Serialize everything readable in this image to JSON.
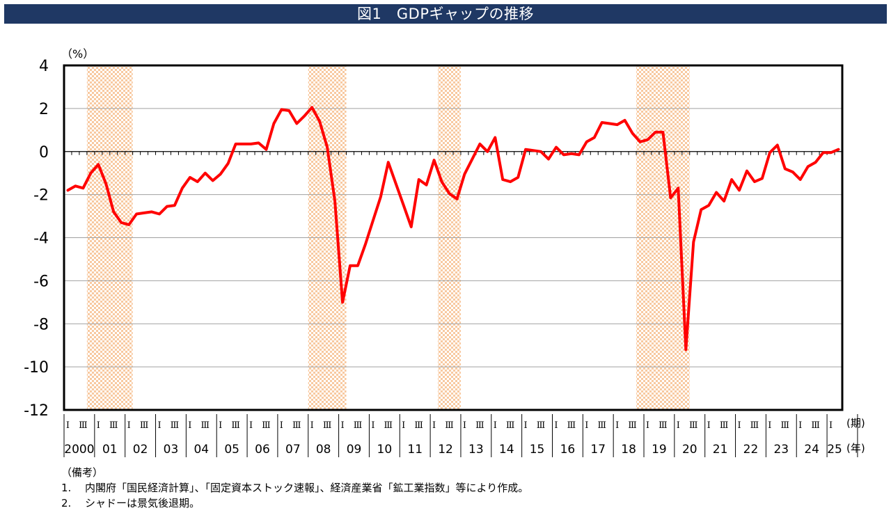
{
  "title": "図1　GDPギャップの推移",
  "notes": {
    "heading": "（備考）",
    "items": [
      {
        "num": "1.",
        "text": "内閣府「国民経済計算」、「固定資本ストック速報」、経済産業省「鉱工業指数」等により作成。"
      },
      {
        "num": "2.",
        "text": "シャドーは景気後退期。"
      }
    ]
  },
  "colors": {
    "title_bg": "#1f3864",
    "line": "#ff0000",
    "shade": "#f8c9a0"
  },
  "chart_data": {
    "type": "line",
    "ylabel": "（%）",
    "ylim": [
      -12,
      4
    ],
    "yticks": [
      4,
      2,
      0,
      -2,
      -4,
      -6,
      -8,
      -10,
      -12
    ],
    "grid": true,
    "legend": "none",
    "x_period_label": "(期)",
    "x_year_label": "(年)",
    "year_labels": [
      "2000",
      "01",
      "02",
      "03",
      "04",
      "05",
      "06",
      "07",
      "08",
      "09",
      "10",
      "11",
      "12",
      "13",
      "14",
      "15",
      "16",
      "17",
      "18",
      "19",
      "20",
      "21",
      "22",
      "23",
      "24",
      "25"
    ],
    "quarter_marks": [
      "Ⅰ",
      "Ⅲ"
    ],
    "start_quarter": "2000Q1",
    "end_quarter": "2025Q2",
    "recessions": [
      {
        "start": "2000Q4",
        "end": "2002Q1"
      },
      {
        "start": "2008Q1",
        "end": "2009Q1"
      },
      {
        "start": "2012Q2",
        "end": "2012Q4"
      },
      {
        "start": "2018Q4",
        "end": "2020Q2"
      }
    ],
    "series": [
      {
        "values": [
          -1.8,
          -1.6,
          -1.7,
          -1.0,
          -0.6,
          -1.5,
          -2.8,
          -3.3,
          -3.4,
          -2.9,
          -2.85,
          -2.8,
          -2.9,
          -2.55,
          -2.5,
          -1.7,
          -1.2,
          -1.4,
          -1.0,
          -1.35,
          -1.05,
          -0.55,
          0.35,
          0.35,
          0.35,
          0.4,
          0.1,
          1.3,
          1.95,
          1.9,
          1.3,
          1.65,
          2.05,
          1.4,
          0.2,
          -2.3,
          -7.0,
          -5.3,
          -5.3,
          -4.3,
          -3.2,
          -2.1,
          -0.5,
          -1.5,
          -2.5,
          -3.5,
          -1.3,
          -1.55,
          -0.4,
          -1.4,
          -1.95,
          -2.2,
          -1.05,
          -0.35,
          0.35,
          0.0,
          0.65,
          -1.3,
          -1.4,
          -1.2,
          0.1,
          0.05,
          0.0,
          -0.35,
          0.2,
          -0.15,
          -0.1,
          -0.15,
          0.45,
          0.65,
          1.35,
          1.3,
          1.25,
          1.45,
          0.85,
          0.45,
          0.55,
          0.9,
          0.9,
          -2.15,
          -1.7,
          -9.2,
          -4.2,
          -2.7,
          -2.5,
          -1.9,
          -2.3,
          -1.3,
          -1.8,
          -0.9,
          -1.4,
          -1.25,
          -0.05,
          0.3,
          -0.8,
          -0.95,
          -1.3,
          -0.7,
          -0.5,
          -0.05,
          -0.05,
          0.1
        ]
      }
    ]
  }
}
